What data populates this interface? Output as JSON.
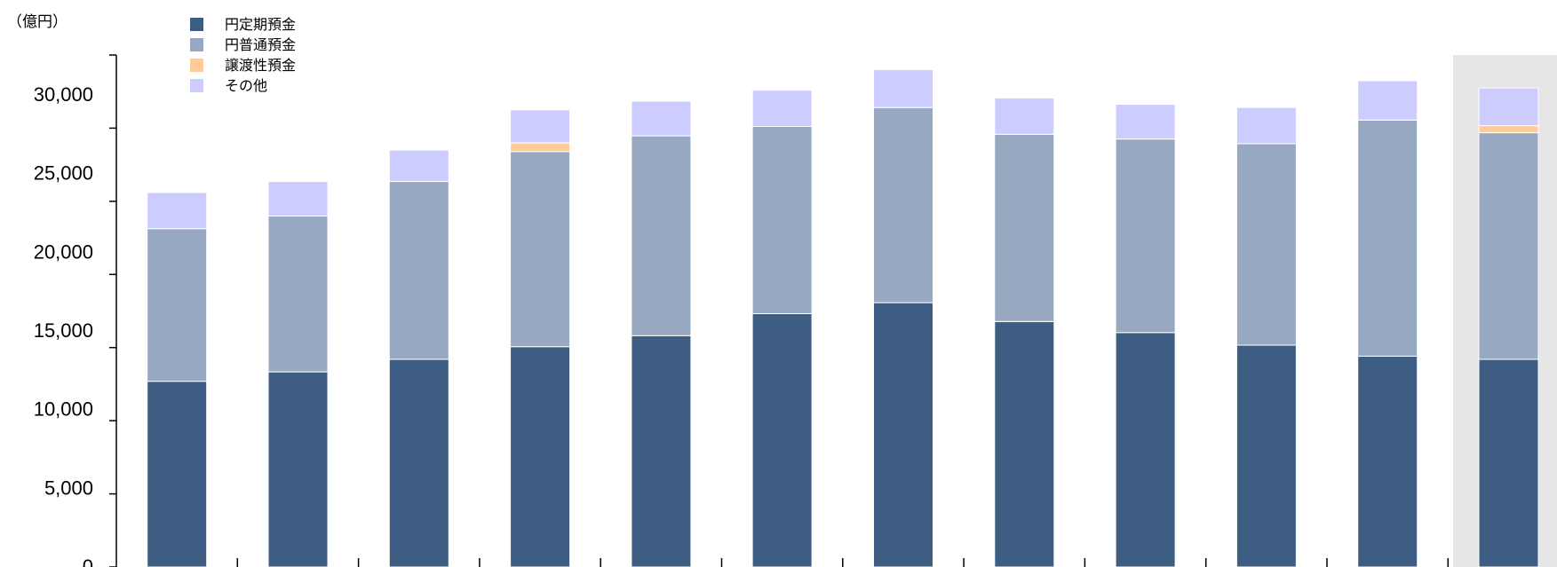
{
  "chart_data": {
    "type": "bar",
    "stacked": true,
    "unit_label": "（億円）",
    "title": "",
    "xlabel": "",
    "ylabel": "",
    "ylim": [
      0,
      30000
    ],
    "y_ticks": [
      0,
      5000,
      10000,
      15000,
      20000,
      25000,
      30000
    ],
    "y_tick_labels": [
      "0",
      "5,000",
      "10,000",
      "15,000",
      "20,000",
      "25,000",
      "30,000"
    ],
    "categories": [
      "",
      "",
      "",
      "",
      "",
      "",
      "",
      "",
      "",
      "",
      "",
      ""
    ],
    "highlight_last_category": true,
    "legend_position": "top-left",
    "grid": false,
    "series": [
      {
        "name": "円定期預金",
        "color": "#3d5e82",
        "values": [
          11800,
          12400,
          13200,
          14000,
          14700,
          16100,
          16800,
          15600,
          14900,
          14100,
          13400,
          13200
        ]
      },
      {
        "name": "円普通預金",
        "color": "#97a8c1",
        "values": [
          9700,
          9900,
          11300,
          12400,
          12700,
          11900,
          12400,
          11900,
          12300,
          12800,
          15000,
          14400
        ]
      },
      {
        "name": "譲渡性預金",
        "color": "#ffcc99",
        "values": [
          0,
          0,
          0,
          550,
          0,
          0,
          0,
          0,
          0,
          0,
          0,
          450
        ]
      },
      {
        "name": "その他",
        "color": "#ccccff",
        "values": [
          2300,
          2200,
          2000,
          2100,
          2200,
          2300,
          2400,
          2300,
          2200,
          2300,
          2500,
          2400
        ]
      }
    ]
  }
}
